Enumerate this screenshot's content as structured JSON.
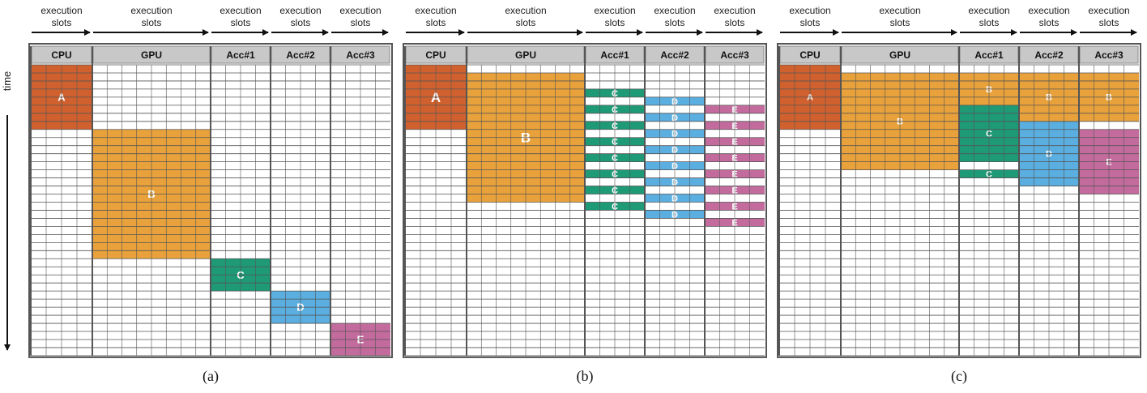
{
  "time_label": "time",
  "header_label_line1": "execution",
  "header_label_line2": "slots",
  "colors": {
    "A": "#d0612e",
    "B": "#e9a23b",
    "C": "#1e9a76",
    "D": "#5aaee0",
    "E": "#c46b9e",
    "header_fill": "#c8c8c8",
    "grid_line": "#555555",
    "frame": "#555555"
  },
  "panels": [
    {
      "caption": "(a)",
      "columns": [
        {
          "name": "CPU"
        },
        {
          "name": "GPU"
        },
        {
          "name": "Acc#1"
        },
        {
          "name": "Acc#2"
        },
        {
          "name": "Acc#3"
        }
      ],
      "tasks": [
        {
          "label": "A",
          "col": 0,
          "row_start": 0,
          "row_end": 8,
          "pattern": "solid"
        },
        {
          "label": "B",
          "col": 1,
          "row_start": 8,
          "row_end": 24,
          "pattern": "solid"
        },
        {
          "label": "C",
          "col": 2,
          "row_start": 24,
          "row_end": 28,
          "pattern": "solid"
        },
        {
          "label": "D",
          "col": 3,
          "row_start": 28,
          "row_end": 32,
          "pattern": "solid"
        },
        {
          "label": "E",
          "col": 4,
          "row_start": 32,
          "row_end": 36,
          "pattern": "solid"
        }
      ]
    },
    {
      "caption": "(b)",
      "columns": [
        {
          "name": "CPU"
        },
        {
          "name": "GPU"
        },
        {
          "name": "Acc#1"
        },
        {
          "name": "Acc#2"
        },
        {
          "name": "Acc#3"
        }
      ],
      "tasks": [
        {
          "label": "A",
          "col": 0,
          "row_start": 0,
          "row_end": 8,
          "pattern": "solid"
        },
        {
          "label": "B",
          "col": 1,
          "row_start": 1,
          "row_end": 17,
          "pattern": "solid"
        },
        {
          "label": "C",
          "col": 2,
          "row_start": 3,
          "row_end": 18,
          "pattern": "alternate"
        },
        {
          "label": "D",
          "col": 3,
          "row_start": 4,
          "row_end": 19,
          "pattern": "alternate"
        },
        {
          "label": "E",
          "col": 4,
          "row_start": 5,
          "row_end": 20,
          "pattern": "alternate"
        }
      ]
    },
    {
      "caption": "(c)",
      "columns": [
        {
          "name": "CPU"
        },
        {
          "name": "GPU"
        },
        {
          "name": "Acc#1"
        },
        {
          "name": "Acc#2"
        },
        {
          "name": "Acc#3"
        }
      ],
      "tasks": [
        {
          "label": "A",
          "col": 0,
          "row_start": 0,
          "row_end": 8,
          "pattern": "solid"
        },
        {
          "label": "B",
          "col": 1,
          "row_start": 1,
          "row_end": 13,
          "pattern": "solid"
        },
        {
          "label": "B",
          "col": 2,
          "row_start": 1,
          "row_end": 5,
          "pattern": "solid"
        },
        {
          "label": "B",
          "col": 3,
          "row_start": 1,
          "row_end": 7,
          "pattern": "solid"
        },
        {
          "label": "B",
          "col": 4,
          "row_start": 1,
          "row_end": 7,
          "pattern": "solid"
        },
        {
          "label": "C",
          "col": 2,
          "row_start": 5,
          "row_end": 12,
          "pattern": "solid"
        },
        {
          "label": "C",
          "col": 2,
          "row_start": 13,
          "row_end": 14,
          "pattern": "solid"
        },
        {
          "label": "D",
          "col": 3,
          "row_start": 7,
          "row_end": 15,
          "pattern": "solid"
        },
        {
          "label": "E",
          "col": 4,
          "row_start": 8,
          "row_end": 16,
          "pattern": "solid"
        }
      ]
    }
  ]
}
